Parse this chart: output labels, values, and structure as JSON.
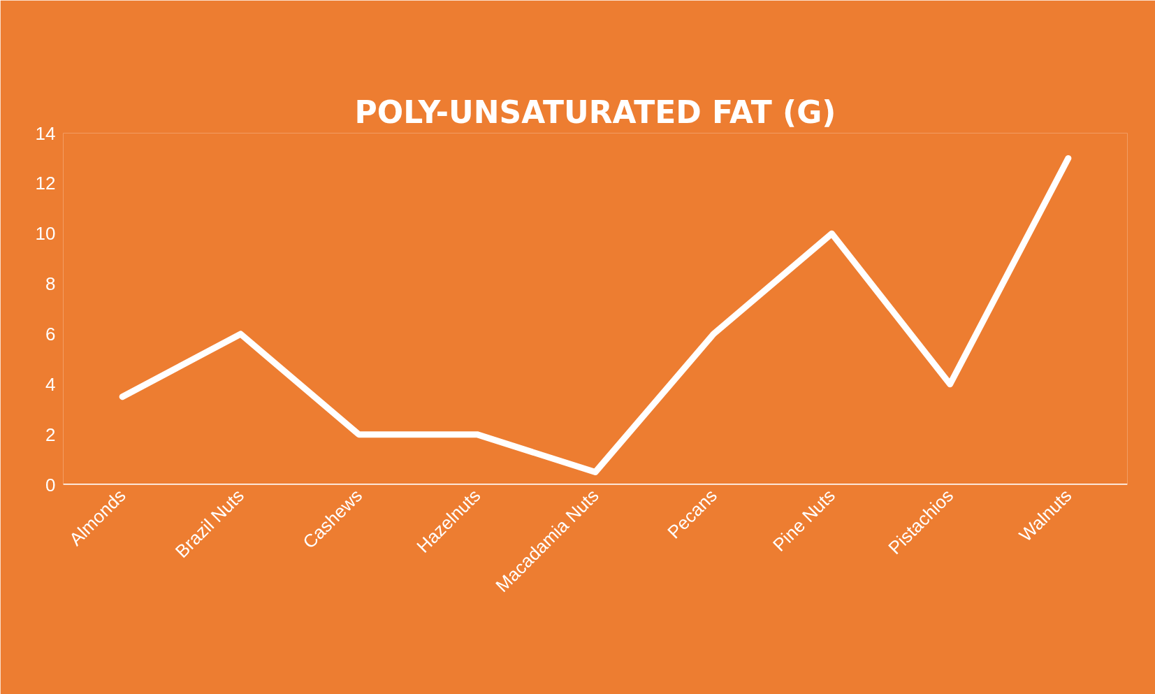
{
  "chart_data": {
    "type": "line",
    "title": "POLY-UNSATURATED FAT (G)",
    "categories": [
      "Almonds",
      "Brazil Nuts",
      "Cashews",
      "Hazelnuts",
      "Macadamia Nuts",
      "Pecans",
      "Pine Nuts",
      "Pistachios",
      "Walnuts"
    ],
    "series": [
      {
        "color": "#ffffff",
        "values": [
          3.5,
          6.0,
          2.0,
          2.0,
          0.5,
          6.0,
          10.0,
          4.0,
          13.0
        ]
      }
    ],
    "ylim": [
      0,
      14
    ],
    "yticks": [
      0,
      2,
      4,
      6,
      8,
      10,
      12,
      14
    ],
    "grid": false,
    "marker": "none",
    "line_style": "solid"
  }
}
